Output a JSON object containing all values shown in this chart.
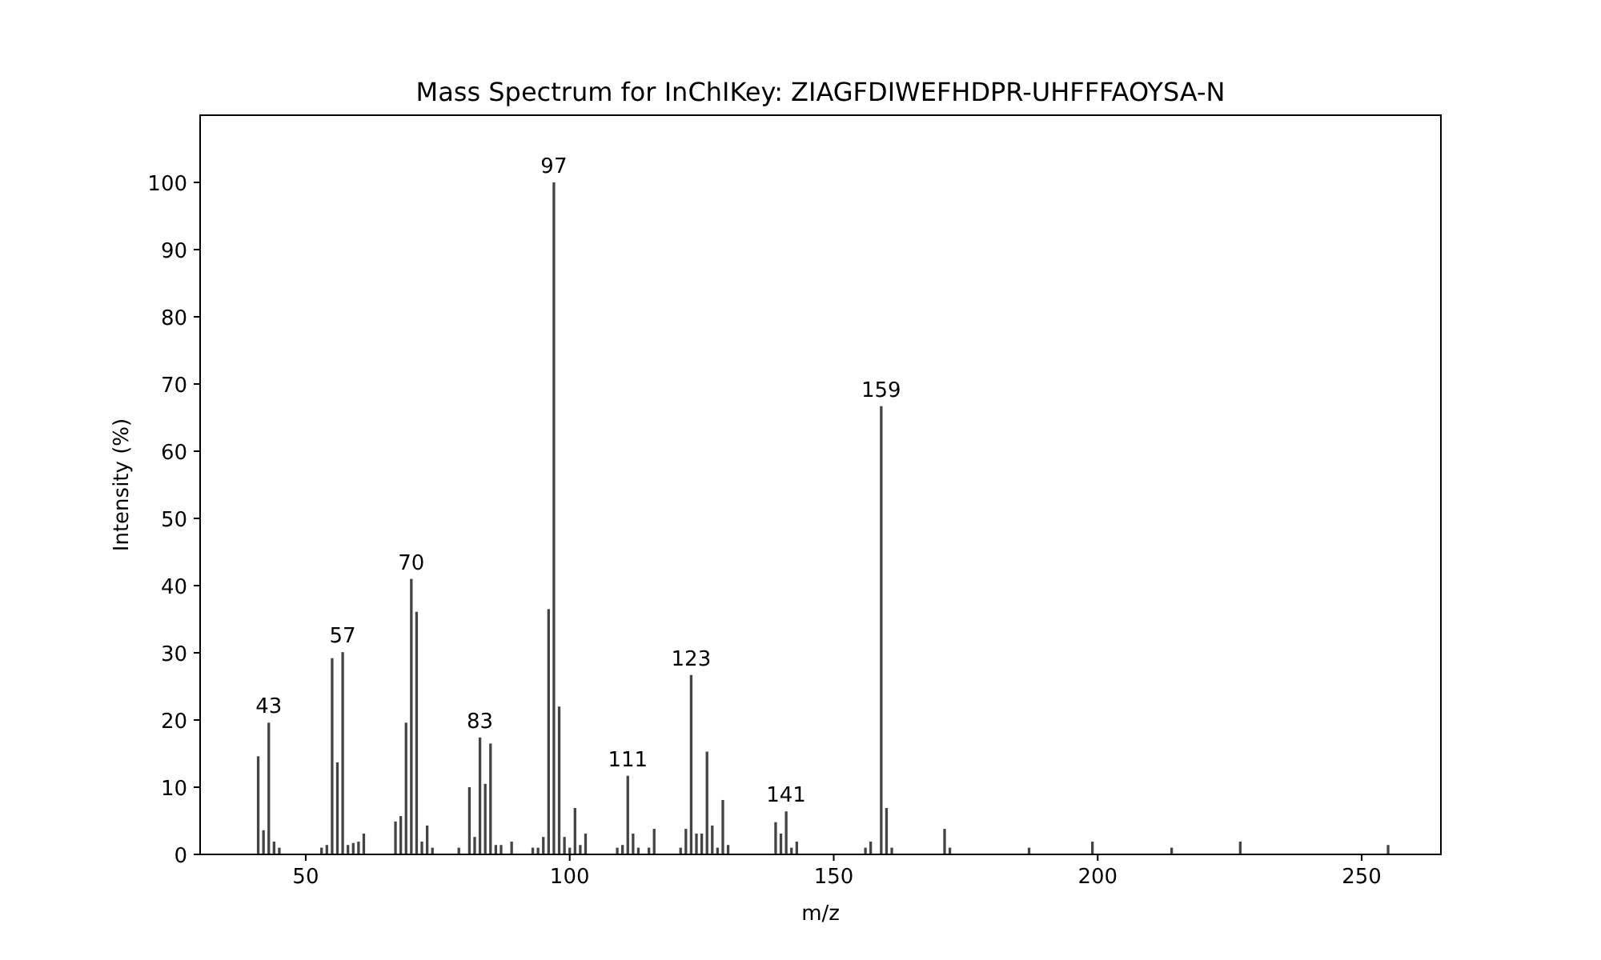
{
  "chart_data": {
    "type": "bar",
    "title": "Mass Spectrum for InChIKey: ZIAGFDIWEFHDPR-UHFFFAOYSA-N",
    "xlabel": "m/z",
    "ylabel": "Intensity (%)",
    "x": [
      41,
      42,
      43,
      44,
      45,
      53,
      54,
      55,
      56,
      57,
      58,
      59,
      60,
      61,
      67,
      68,
      69,
      70,
      71,
      72,
      73,
      74,
      79,
      81,
      82,
      83,
      84,
      85,
      86,
      87,
      89,
      93,
      94,
      95,
      96,
      97,
      98,
      99,
      100,
      101,
      102,
      103,
      109,
      110,
      111,
      112,
      113,
      115,
      116,
      121,
      122,
      123,
      124,
      125,
      126,
      127,
      128,
      129,
      130,
      139,
      140,
      141,
      142,
      143,
      156,
      157,
      159,
      160,
      161,
      171,
      172,
      187,
      199,
      214,
      227,
      255
    ],
    "values": [
      14.6,
      3.6,
      19.6,
      1.9,
      1.0,
      1.0,
      1.4,
      29.2,
      13.7,
      30.1,
      1.4,
      1.7,
      1.9,
      3.1,
      4.9,
      5.7,
      19.6,
      41.0,
      36.1,
      1.9,
      4.3,
      1.0,
      1.0,
      10.0,
      2.6,
      17.4,
      10.5,
      16.5,
      1.4,
      1.4,
      1.9,
      1.0,
      1.0,
      2.6,
      36.5,
      100,
      22.0,
      2.6,
      1.0,
      6.9,
      1.4,
      3.1,
      1.0,
      1.4,
      11.7,
      3.1,
      1.0,
      1.0,
      3.8,
      1.0,
      3.8,
      26.7,
      3.1,
      3.1,
      15.3,
      4.3,
      1.0,
      8.1,
      1.4,
      4.8,
      3.1,
      6.4,
      1.0,
      1.9,
      1.0,
      1.9,
      66.7,
      6.9,
      1.0,
      3.8,
      1.0,
      1.0,
      1.9,
      1.0,
      1.9,
      1.4
    ],
    "annotations": [
      {
        "text": "43",
        "x": 43,
        "y": 19.6
      },
      {
        "text": "57",
        "x": 57,
        "y": 30.1
      },
      {
        "text": "70",
        "x": 70,
        "y": 41.0
      },
      {
        "text": "83",
        "x": 83,
        "y": 17.4
      },
      {
        "text": "97",
        "x": 97,
        "y": 100
      },
      {
        "text": "111",
        "x": 111,
        "y": 11.7
      },
      {
        "text": "123",
        "x": 123,
        "y": 26.7
      },
      {
        "text": "141",
        "x": 141,
        "y": 6.4
      },
      {
        "text": "159",
        "x": 159,
        "y": 66.7
      }
    ],
    "color": "#444444",
    "xlim": [
      30,
      265
    ],
    "ylim": [
      0,
      110
    ],
    "xticks": [
      50,
      100,
      150,
      200,
      250
    ],
    "yticks": [
      0,
      10,
      20,
      30,
      40,
      50,
      60,
      70,
      80,
      90,
      100
    ],
    "grid": false
  }
}
